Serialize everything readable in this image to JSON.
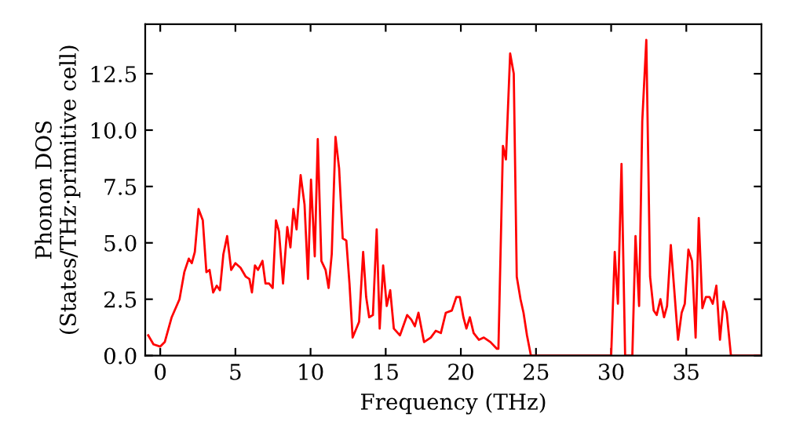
{
  "chart_data": {
    "type": "line",
    "xlabel": "Frequency (THz)",
    "ylabel": "Phonon DOS\n(States/THz·primitive cell)",
    "xlim": [
      -1,
      40
    ],
    "ylim": [
      0,
      14.7
    ],
    "xticks": [
      0,
      5,
      10,
      15,
      20,
      25,
      30,
      35
    ],
    "yticks": [
      {
        "value": 0,
        "label": "0.0"
      },
      {
        "value": 2.5,
        "label": "2.5"
      },
      {
        "value": 5,
        "label": "5.0"
      },
      {
        "value": 7.5,
        "label": "7.5"
      },
      {
        "value": 10,
        "label": "10.0"
      },
      {
        "value": 12.5,
        "label": "12.5"
      }
    ],
    "grid": false,
    "marker": "none",
    "line_style": "solid",
    "series": [
      {
        "color": "#ff0000",
        "x": [
          -0.8,
          -0.45,
          0,
          0.3,
          0.76,
          1.28,
          1.6,
          1.9,
          2.1,
          2.3,
          2.55,
          2.83,
          3.07,
          3.28,
          3.52,
          3.76,
          3.97,
          4.2,
          4.45,
          4.72,
          5.0,
          5.34,
          5.69,
          5.93,
          6.1,
          6.3,
          6.5,
          6.8,
          7.0,
          7.24,
          7.48,
          7.7,
          7.9,
          8.17,
          8.45,
          8.66,
          8.86,
          9.07,
          9.34,
          9.6,
          9.83,
          10.03,
          10.28,
          10.48,
          10.72,
          11.0,
          11.2,
          11.41,
          11.66,
          11.9,
          12.14,
          12.38,
          12.59,
          12.8,
          13.23,
          13.5,
          13.7,
          13.9,
          14.15,
          14.4,
          14.6,
          14.83,
          15.07,
          15.3,
          15.54,
          15.95,
          16.43,
          16.7,
          16.94,
          17.18,
          17.55,
          18.0,
          18.33,
          18.67,
          19.0,
          19.4,
          19.7,
          19.93,
          20.17,
          20.37,
          20.6,
          20.85,
          21.2,
          21.53,
          21.97,
          22.4,
          22.5,
          22.8,
          23.0,
          23.28,
          23.52,
          23.72,
          23.97,
          24.17,
          24.4,
          24.66,
          30.0,
          30.24,
          30.45,
          30.69,
          30.93,
          31.41,
          31.62,
          31.86,
          32.07,
          32.34,
          32.59,
          32.83,
          33.03,
          33.28,
          33.52,
          33.72,
          33.97,
          34.2,
          34.45,
          34.69,
          34.9,
          35.14,
          35.38,
          35.62,
          35.83,
          36.07,
          36.3,
          36.55,
          36.76,
          37.0,
          37.24,
          37.48,
          37.69,
          37.97,
          40
        ],
        "values": [
          0.9,
          0.5,
          0.4,
          0.6,
          1.7,
          2.5,
          3.7,
          4.3,
          4.1,
          4.6,
          6.5,
          6.0,
          3.7,
          3.8,
          2.8,
          3.1,
          2.9,
          4.5,
          5.3,
          3.8,
          4.1,
          3.9,
          3.5,
          3.4,
          2.8,
          4.0,
          3.8,
          4.2,
          3.2,
          3.2,
          3.0,
          6.0,
          5.5,
          3.2,
          5.7,
          4.8,
          6.5,
          5.6,
          8.0,
          6.7,
          3.4,
          7.8,
          4.4,
          9.6,
          4.2,
          3.8,
          3.0,
          4.5,
          9.7,
          8.3,
          5.2,
          5.1,
          3.2,
          0.8,
          1.5,
          4.6,
          2.6,
          1.7,
          1.8,
          5.6,
          1.2,
          4.0,
          2.2,
          2.9,
          1.2,
          0.9,
          1.8,
          1.6,
          1.3,
          1.9,
          0.6,
          0.8,
          1.1,
          1.0,
          1.9,
          2.0,
          2.6,
          2.6,
          1.7,
          1.2,
          1.7,
          1.0,
          0.7,
          0.8,
          0.6,
          0.3,
          0.3,
          9.3,
          8.7,
          13.4,
          12.5,
          3.5,
          2.5,
          1.9,
          0.9,
          0,
          0,
          4.6,
          2.3,
          8.5,
          0,
          0,
          5.3,
          2.2,
          10.4,
          14.0,
          3.5,
          2.0,
          1.8,
          2.5,
          1.7,
          2.2,
          4.9,
          2.9,
          0.7,
          1.9,
          2.3,
          4.7,
          4.2,
          0.8,
          6.1,
          2.1,
          2.6,
          2.6,
          2.3,
          3.1,
          0.7,
          2.4,
          1.9,
          0,
          0
        ]
      }
    ]
  }
}
